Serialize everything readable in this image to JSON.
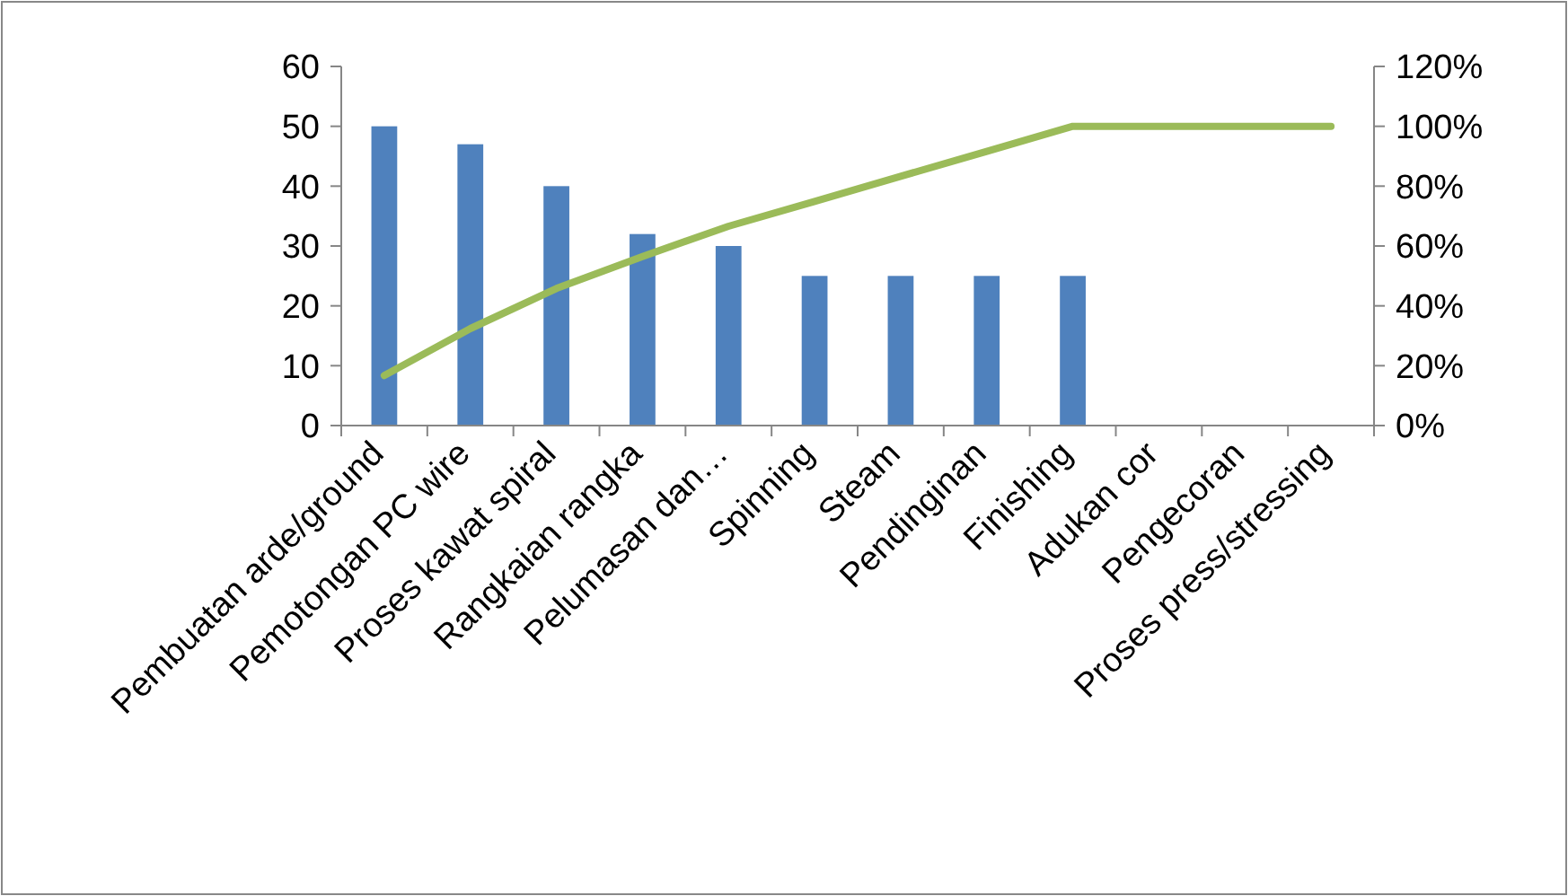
{
  "chart_data": {
    "type": "bar",
    "categories": [
      "Pembuatan arde/ground",
      "Pemotongan PC wire",
      "Proses kawat spiral",
      "Rangkaian rangka",
      "Pelumasan dan…",
      "Spinning",
      "Steam",
      "Pendinginan",
      "Finishing",
      "Adukan cor",
      "Pengecoran",
      "Proses press/stressing"
    ],
    "series": [
      {
        "color": "#4f81bd",
        "values": [
          50,
          47,
          40,
          32,
          30,
          25,
          25,
          25,
          25,
          0,
          0,
          0
        ]
      },
      {
        "type": "line",
        "axis": "y2",
        "color": "#9bbb59",
        "values": [
          16.7,
          32.4,
          45.8,
          56.5,
          66.6,
          74.9,
          83.3,
          91.6,
          100,
          100,
          100,
          100
        ]
      }
    ],
    "ylim": [
      0,
      60
    ],
    "yticks": [
      0,
      10,
      20,
      30,
      40,
      50,
      60
    ],
    "y2lim": [
      0,
      120
    ],
    "y2ticks": [
      {
        "value": 0,
        "label": "0%"
      },
      {
        "value": 20,
        "label": "20%"
      },
      {
        "value": 40,
        "label": "40%"
      },
      {
        "value": 60,
        "label": "60%"
      },
      {
        "value": 80,
        "label": "80%"
      },
      {
        "value": 100,
        "label": "100%"
      },
      {
        "value": 120,
        "label": "120%"
      }
    ],
    "grid": false,
    "marker": "none",
    "line_style": "solid"
  }
}
